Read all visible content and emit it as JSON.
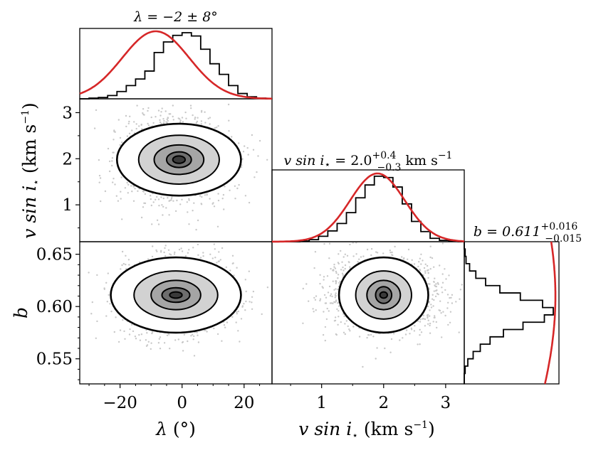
{
  "chart_data": {
    "type": "corner",
    "parameters": [
      {
        "key": "lambda",
        "title": "λ = −2 ± 8°",
        "axis_symbol": "λ",
        "axis_unit": " (°)",
        "median": -2,
        "err_plus": 8,
        "err_minus": 8
      },
      {
        "key": "vsini",
        "title_prefix": "v sin i",
        "title_star": "⋆",
        "title_value": " = 2.0",
        "title_sup": "+0.4",
        "title_subscript": "−0.3",
        "title_unit": " km s",
        "title_unit_exp": "−1",
        "axis_symbol": "v sin i",
        "axis_star": "⋆",
        "axis_unit": " (km s",
        "axis_unit_exp": "−1",
        "axis_close": ")",
        "median": 2.0,
        "err_plus": 0.4,
        "err_minus": 0.3
      },
      {
        "key": "b",
        "title_prefix": "b = 0.611",
        "title_sup": "+0.016",
        "title_subscript": "−0.015",
        "axis_symbol": "b",
        "median": 0.611,
        "err_plus": 0.016,
        "err_minus": 0.015
      }
    ],
    "ranges": {
      "lambda": [
        -33,
        29
      ],
      "vsini": [
        0.2,
        3.3
      ],
      "b": [
        0.526,
        0.662
      ]
    },
    "ticks": {
      "lambda": {
        "values": [
          -20,
          0,
          20
        ],
        "labels": [
          "−20",
          "0",
          "20"
        ]
      },
      "vsini_y": {
        "values": [
          1,
          2,
          3
        ],
        "labels": [
          "1",
          "2",
          "3"
        ]
      },
      "vsini_x": {
        "values": [
          1,
          2,
          3
        ],
        "labels": [
          "1",
          "2",
          "3"
        ]
      },
      "b": {
        "values": [
          0.55,
          0.6,
          0.65
        ],
        "labels": [
          "0.55",
          "0.60",
          "0.65"
        ]
      }
    },
    "histograms": {
      "lambda": {
        "edges": [
          -33,
          -30,
          -27,
          -24,
          -21,
          -18,
          -15,
          -12,
          -9,
          -6,
          -3,
          0,
          3,
          6,
          9,
          12,
          15,
          18,
          21,
          24,
          27,
          29
        ],
        "counts": [
          0,
          0.01,
          0.02,
          0.05,
          0.11,
          0.2,
          0.3,
          0.42,
          0.7,
          0.86,
          0.96,
          1.0,
          0.95,
          0.75,
          0.53,
          0.37,
          0.2,
          0.08,
          0.03,
          0.01,
          0
        ]
      },
      "vsini": {
        "edges": [
          0.2,
          0.35,
          0.5,
          0.65,
          0.8,
          0.95,
          1.1,
          1.25,
          1.4,
          1.55,
          1.7,
          1.85,
          2.0,
          2.15,
          2.3,
          2.45,
          2.6,
          2.75,
          2.9,
          3.05,
          3.2,
          3.3
        ],
        "counts": [
          0,
          0,
          0,
          0.01,
          0.03,
          0.08,
          0.16,
          0.27,
          0.43,
          0.65,
          0.84,
          0.97,
          0.95,
          0.81,
          0.56,
          0.3,
          0.15,
          0.05,
          0.02,
          0.01,
          0
        ]
      },
      "b": {
        "edges": [
          0.526,
          0.536,
          0.543,
          0.55,
          0.557,
          0.564,
          0.571,
          0.578,
          0.585,
          0.592,
          0.599,
          0.606,
          0.613,
          0.62,
          0.627,
          0.634,
          0.641,
          0.648,
          0.655,
          0.662
        ],
        "counts": [
          0,
          0.01,
          0.04,
          0.1,
          0.18,
          0.29,
          0.44,
          0.66,
          0.9,
          1.0,
          0.88,
          0.63,
          0.4,
          0.24,
          0.13,
          0.06,
          0.02,
          0.01,
          0
        ]
      }
    },
    "prior_curves": {
      "lambda": {
        "mean": -8.5,
        "sigma": 10.8
      },
      "vsini": {
        "mean": 1.9,
        "sigma": 0.44
      },
      "b": {
        "mean": 0.61,
        "sigma": 0.17
      }
    },
    "contours": {
      "lambda_vsini": {
        "center": [
          -1,
          1.98
        ],
        "radii_x": [
          20,
          13,
          8,
          4,
          2
        ],
        "radii_y": [
          0.78,
          0.53,
          0.32,
          0.17,
          0.08
        ]
      },
      "lambda_b": {
        "center": [
          -2,
          0.611
        ],
        "radii_x": [
          21,
          13.5,
          8,
          4.5,
          2
        ],
        "radii_y": [
          0.036,
          0.023,
          0.014,
          0.007,
          0.003
        ]
      },
      "vsini_b": {
        "center": [
          2.0,
          0.611
        ],
        "radii_x": [
          0.72,
          0.45,
          0.27,
          0.13,
          0.06
        ],
        "radii_y": [
          0.036,
          0.023,
          0.014,
          0.008,
          0.003
        ]
      }
    },
    "colors": {
      "histogram": "#000000",
      "prior_curve": "#d62728",
      "points": "#555555",
      "contour": "#000000"
    },
    "grid": false,
    "legend": "none"
  }
}
